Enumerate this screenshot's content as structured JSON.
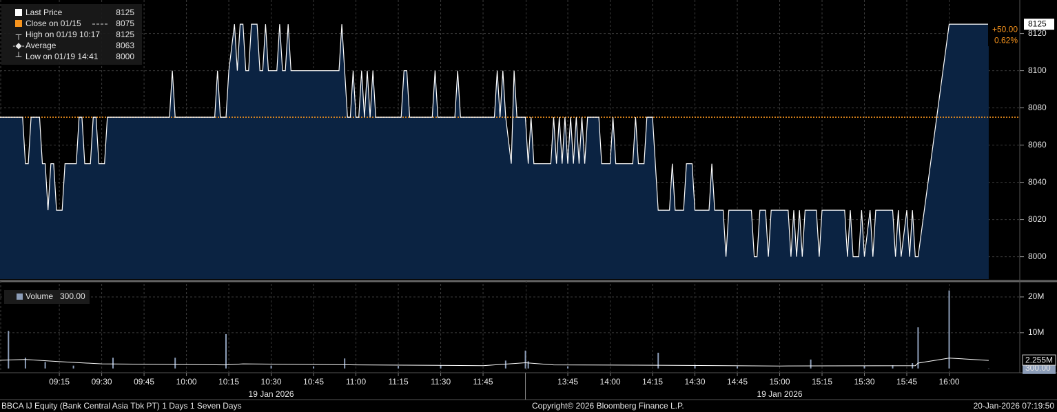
{
  "chart_data": [
    {
      "type": "area",
      "xlim": [
        [
          "08:54",
          "12:00"
        ],
        [
          "13:30",
          "16:25"
        ]
      ],
      "ylim": [
        7988,
        8138
      ],
      "yticks": [
        8000,
        8020,
        8040,
        8060,
        8080,
        8100,
        8120
      ],
      "grid": true,
      "series": [
        {
          "name": "Last Price",
          "color": "#ffffff",
          "fill": "#0b2342",
          "x": [
            "08:54",
            "09:02",
            "09:03",
            "09:04",
            "09:05",
            "09:08",
            "09:09",
            "09:10",
            "09:11",
            "09:12",
            "09:13",
            "09:14",
            "09:16",
            "09:17",
            "09:21",
            "09:22",
            "09:23",
            "09:24",
            "09:26",
            "09:27",
            "09:28",
            "09:29",
            "09:31",
            "09:32",
            "09:54",
            "09:55",
            "09:56",
            "10:10",
            "10:11",
            "10:12",
            "10:14",
            "10:15",
            "10:17",
            "10:18",
            "10:19",
            "10:20",
            "10:21",
            "10:22",
            "10:23",
            "10:25",
            "10:26",
            "10:27",
            "10:28",
            "10:29",
            "10:32",
            "10:33",
            "10:34",
            "10:35",
            "10:36",
            "10:37",
            "10:54",
            "10:55",
            "10:57",
            "10:58",
            "10:59",
            "11:00",
            "11:01",
            "11:02",
            "11:03",
            "11:04",
            "11:05",
            "11:06",
            "11:07",
            "11:16",
            "11:17",
            "11:18",
            "11:19",
            "11:27",
            "11:28",
            "11:29",
            "11:35",
            "11:36",
            "11:37",
            "11:49",
            "11:50",
            "11:51",
            "11:52",
            "11:53",
            "11:55",
            "11:56",
            "11:57",
            "12:00",
            "13:30",
            "13:31",
            "13:32",
            "13:33",
            "13:39",
            "13:40",
            "13:41",
            "13:42",
            "13:43",
            "13:44",
            "13:45",
            "13:46",
            "13:47",
            "13:48",
            "13:49",
            "13:50",
            "13:51",
            "13:52",
            "13:56",
            "13:57",
            "14:00",
            "14:01",
            "14:02",
            "14:08",
            "14:09",
            "14:10",
            "14:12",
            "14:13",
            "14:15",
            "14:17",
            "14:21",
            "14:22",
            "14:23",
            "14:26",
            "14:27",
            "14:29",
            "14:30",
            "14:35",
            "14:36",
            "14:37",
            "14:40",
            "14:41",
            "14:42",
            "14:50",
            "14:51",
            "14:52",
            "14:53",
            "14:55",
            "14:56",
            "14:57",
            "15:03",
            "15:04",
            "15:05",
            "15:06",
            "15:07",
            "15:08",
            "15:09",
            "15:13",
            "15:14",
            "15:15",
            "15:23",
            "15:24",
            "15:25",
            "15:26",
            "15:28",
            "15:29",
            "15:30",
            "15:32",
            "15:33",
            "15:34",
            "15:40",
            "15:41",
            "15:42",
            "15:43",
            "15:45",
            "15:46",
            "15:47",
            "15:48",
            "15:49",
            "16:00",
            "16:14"
          ],
          "values": [
            8075,
            8075,
            8050,
            8050,
            8075,
            8075,
            8050,
            8050,
            8025,
            8050,
            8050,
            8025,
            8025,
            8050,
            8050,
            8075,
            8075,
            8050,
            8050,
            8075,
            8075,
            8050,
            8050,
            8075,
            8075,
            8100,
            8075,
            8075,
            8100,
            8075,
            8075,
            8100,
            8125,
            8100,
            8125,
            8125,
            8100,
            8100,
            8125,
            8125,
            8100,
            8100,
            8125,
            8100,
            8100,
            8125,
            8100,
            8100,
            8125,
            8100,
            8100,
            8125,
            8075,
            8075,
            8100,
            8075,
            8075,
            8100,
            8075,
            8100,
            8075,
            8100,
            8075,
            8075,
            8100,
            8100,
            8075,
            8075,
            8100,
            8075,
            8075,
            8100,
            8075,
            8075,
            8100,
            8075,
            8100,
            8075,
            8050,
            8100,
            8075,
            8075,
            8075,
            8050,
            8075,
            8050,
            8050,
            8075,
            8050,
            8075,
            8050,
            8075,
            8050,
            8075,
            8050,
            8075,
            8050,
            8075,
            8050,
            8075,
            8075,
            8050,
            8050,
            8075,
            8050,
            8050,
            8075,
            8050,
            8050,
            8075,
            8075,
            8025,
            8025,
            8050,
            8025,
            8025,
            8050,
            8050,
            8025,
            8025,
            8050,
            8025,
            8025,
            8000,
            8025,
            8025,
            8000,
            8000,
            8025,
            8025,
            8000,
            8025,
            8025,
            8000,
            8025,
            8000,
            8025,
            8000,
            8025,
            8025,
            8000,
            8025,
            8025,
            8000,
            8025,
            8000,
            8000,
            8025,
            8000,
            8025,
            8000,
            8025,
            8025,
            8000,
            8025,
            8000,
            8025,
            8000,
            8025,
            8000,
            8000,
            8125,
            8125
          ]
        }
      ],
      "reference_line": {
        "name": "Close on 01/15",
        "value": 8075,
        "color": "#f7941d"
      },
      "stats": [
        {
          "label": "High on 01/19 10:17",
          "value": 8125
        },
        {
          "label": "Average",
          "value": 8063
        },
        {
          "label": "Low on 01/19 14:41",
          "value": 8000
        }
      ],
      "change": {
        "value": 50,
        "label": "+50.00"
      },
      "change_pct": {
        "value": 0.62,
        "label": "0.62%"
      }
    },
    {
      "type": "bar",
      "xlim": [
        [
          "08:54",
          "12:00"
        ],
        [
          "13:30",
          "16:25"
        ]
      ],
      "ylim": [
        -1000000,
        23650000
      ],
      "yticks": [
        {
          "value": 10000000,
          "label": "10M"
        },
        {
          "value": 20000000,
          "label": "20M"
        }
      ],
      "grid": true,
      "xticks": [
        "09:15",
        "09:30",
        "09:45",
        "10:00",
        "10:15",
        "10:30",
        "10:45",
        "11:00",
        "11:15",
        "11:30",
        "11:45",
        "13:45",
        "14:00",
        "14:15",
        "14:30",
        "14:45",
        "15:00",
        "15:15",
        "15:30",
        "15:45",
        "16:00"
      ],
      "date_labels": [
        {
          "x": "10:30",
          "label": "19 Jan 2026"
        },
        {
          "x": "15:00",
          "label": "19 Jan 2026"
        }
      ],
      "series": [
        {
          "name": "Volume",
          "color": "#8c9db8",
          "last_value_label": "300.00",
          "x": [
            "08:57",
            "09:03",
            "09:10",
            "09:20",
            "09:34",
            "09:56",
            "10:14",
            "10:30",
            "10:45",
            "10:56",
            "11:15",
            "11:30",
            "11:53",
            "12:00",
            "13:31",
            "13:45",
            "14:17",
            "14:30",
            "14:45",
            "15:11",
            "15:30",
            "15:40",
            "15:47",
            "15:49",
            "16:00",
            "16:14"
          ],
          "values": [
            10500000,
            3000000,
            1800000,
            800000,
            3000000,
            3000000,
            9600000,
            800000,
            600000,
            2800000,
            700000,
            900000,
            2200000,
            5000000,
            2000000,
            600000,
            4400000,
            1000000,
            600000,
            2500000,
            700000,
            900000,
            1500000,
            11500000,
            21800000,
            300
          ]
        }
      ],
      "average_line": {
        "color": "#ffffff",
        "last_label": "2.255M",
        "x": [
          "08:54",
          "09:03",
          "09:15",
          "09:30",
          "10:14",
          "10:20",
          "11:00",
          "11:45",
          "12:00",
          "13:40",
          "14:17",
          "15:00",
          "15:48",
          "15:49",
          "16:00",
          "16:14"
        ],
        "values": [
          2300000,
          2500000,
          1900000,
          1300000,
          1000000,
          1300000,
          1000000,
          800000,
          1600000,
          1000000,
          900000,
          700000,
          800000,
          1500000,
          2900000,
          2255000
        ]
      }
    }
  ],
  "footer": {
    "security": "BBCA IJ Equity (Bank Central Asia Tbk PT) 1 Days 1 Seven Days",
    "copyright": "Copyright© 2026 Bloomberg Finance L.P.",
    "timestamp": "20-Jan-2026 07:19:50"
  }
}
